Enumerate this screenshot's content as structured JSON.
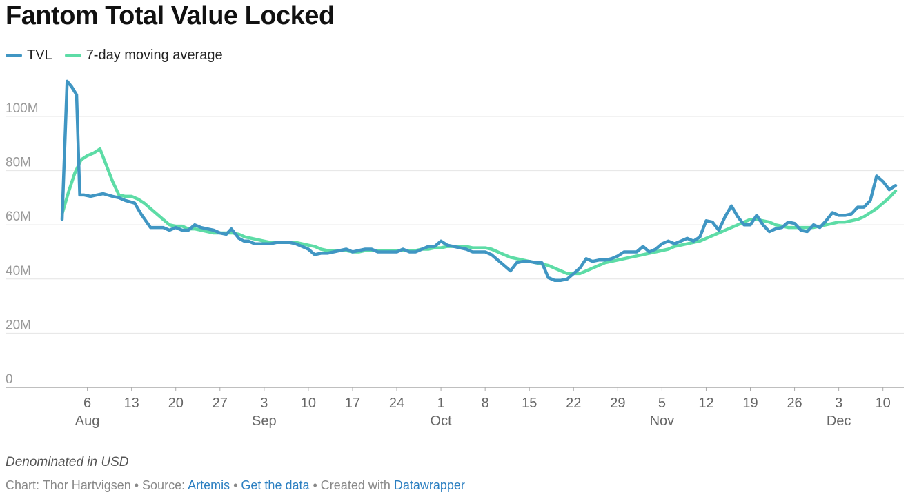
{
  "title": "Fantom Total Value Locked",
  "notes": "Denominated in USD",
  "footer": {
    "chart_prefix": "Chart: Thor Hartvigsen • Source: ",
    "source_link": "Artemis",
    "sep1": " • ",
    "data_link": "Get the data",
    "created_prefix": " • Created with ",
    "tool_link": "Datawrapper"
  },
  "colors": {
    "tvl": "#4096c3",
    "ma": "#5ddca6",
    "grid": "#e4e4e4",
    "axis": "#aaaaaa",
    "tick_text": "#666666"
  },
  "chart_data": {
    "type": "line",
    "x_axis": {
      "ticks": [
        {
          "day": 6,
          "label": "6",
          "month": "Aug"
        },
        {
          "day": 13,
          "label": "13",
          "month": ""
        },
        {
          "day": 20,
          "label": "20",
          "month": ""
        },
        {
          "day": 27,
          "label": "27",
          "month": ""
        },
        {
          "day": 34,
          "label": "3",
          "month": "Sep"
        },
        {
          "day": 41,
          "label": "10",
          "month": ""
        },
        {
          "day": 48,
          "label": "17",
          "month": ""
        },
        {
          "day": 55,
          "label": "24",
          "month": ""
        },
        {
          "day": 62,
          "label": "1",
          "month": "Oct"
        },
        {
          "day": 69,
          "label": "8",
          "month": ""
        },
        {
          "day": 76,
          "label": "15",
          "month": ""
        },
        {
          "day": 83,
          "label": "22",
          "month": ""
        },
        {
          "day": 90,
          "label": "29",
          "month": ""
        },
        {
          "day": 97,
          "label": "5",
          "month": "Nov"
        },
        {
          "day": 104,
          "label": "12",
          "month": ""
        },
        {
          "day": 111,
          "label": "19",
          "month": ""
        },
        {
          "day": 118,
          "label": "26",
          "month": ""
        },
        {
          "day": 125,
          "label": "3",
          "month": "Dec"
        },
        {
          "day": 132,
          "label": "10",
          "month": ""
        }
      ],
      "xlim": [
        2,
        134
      ]
    },
    "y_axis": {
      "ticks": [
        0,
        20,
        40,
        60,
        80,
        100
      ],
      "tick_labels": [
        "0",
        "20M",
        "40M",
        "60M",
        "80M",
        "100M"
      ],
      "ylim": [
        0,
        115
      ]
    },
    "grid": true,
    "legend_position": "top-left",
    "series": [
      {
        "name": "TVL",
        "color": "#4096c3",
        "points": [
          [
            2,
            62
          ],
          [
            2.8,
            113
          ],
          [
            3.5,
            111
          ],
          [
            4.3,
            108
          ],
          [
            4.8,
            71
          ],
          [
            5.5,
            71
          ],
          [
            6.5,
            70.5
          ],
          [
            7.5,
            71
          ],
          [
            8.5,
            71.5
          ],
          [
            10,
            70.5
          ],
          [
            11,
            70
          ],
          [
            12,
            69
          ],
          [
            13.5,
            68
          ],
          [
            14.5,
            64
          ],
          [
            16,
            59
          ],
          [
            17,
            59
          ],
          [
            18,
            59
          ],
          [
            19,
            58
          ],
          [
            20,
            59
          ],
          [
            21,
            58
          ],
          [
            22,
            58
          ],
          [
            23,
            60
          ],
          [
            24,
            59
          ],
          [
            25,
            58.5
          ],
          [
            26,
            58
          ],
          [
            27,
            57
          ],
          [
            28,
            56.5
          ],
          [
            28.8,
            58.5
          ],
          [
            30,
            55
          ],
          [
            30.8,
            54
          ],
          [
            31.5,
            54
          ],
          [
            32.5,
            53
          ],
          [
            34,
            53
          ],
          [
            35,
            53
          ],
          [
            36,
            53.5
          ],
          [
            37,
            53.5
          ],
          [
            38,
            53.5
          ],
          [
            39,
            53
          ],
          [
            40,
            52
          ],
          [
            41,
            51
          ],
          [
            42,
            49
          ],
          [
            43,
            49.5
          ],
          [
            44,
            49.5
          ],
          [
            45,
            50
          ],
          [
            46,
            50.5
          ],
          [
            47,
            51
          ],
          [
            48,
            50
          ],
          [
            49,
            50.5
          ],
          [
            50,
            51
          ],
          [
            51,
            51
          ],
          [
            52,
            50
          ],
          [
            53,
            50
          ],
          [
            54,
            50
          ],
          [
            55,
            50
          ],
          [
            56,
            51
          ],
          [
            57,
            50
          ],
          [
            58,
            50
          ],
          [
            59,
            51
          ],
          [
            60,
            52
          ],
          [
            61,
            52
          ],
          [
            62,
            54
          ],
          [
            63,
            52.5
          ],
          [
            64,
            52
          ],
          [
            65,
            51.5
          ],
          [
            66,
            51
          ],
          [
            67,
            50
          ],
          [
            68,
            50
          ],
          [
            69,
            50
          ],
          [
            70,
            49
          ],
          [
            71,
            47
          ],
          [
            72,
            45
          ],
          [
            73,
            43
          ],
          [
            74,
            46
          ],
          [
            75,
            46.5
          ],
          [
            76,
            46.5
          ],
          [
            77,
            46
          ],
          [
            78,
            46
          ],
          [
            79,
            40.5
          ],
          [
            80,
            39.5
          ],
          [
            81,
            39.5
          ],
          [
            82,
            40
          ],
          [
            83,
            42
          ],
          [
            84,
            44
          ],
          [
            85,
            47.5
          ],
          [
            86,
            46.5
          ],
          [
            87,
            47
          ],
          [
            88,
            47
          ],
          [
            89,
            47.5
          ],
          [
            90,
            48.5
          ],
          [
            91,
            50
          ],
          [
            92,
            50
          ],
          [
            93,
            50
          ],
          [
            94,
            52
          ],
          [
            95,
            50
          ],
          [
            96,
            51
          ],
          [
            97,
            53
          ],
          [
            98,
            54
          ],
          [
            99,
            53
          ],
          [
            100,
            54
          ],
          [
            101,
            55
          ],
          [
            102,
            54
          ],
          [
            103,
            55.5
          ],
          [
            104,
            61.5
          ],
          [
            105,
            61
          ],
          [
            106,
            58
          ],
          [
            107,
            63
          ],
          [
            108,
            67
          ],
          [
            109,
            63
          ],
          [
            110,
            60
          ],
          [
            111,
            60
          ],
          [
            112,
            63.5
          ],
          [
            113,
            60
          ],
          [
            114,
            57.5
          ],
          [
            115,
            58.5
          ],
          [
            116,
            59
          ],
          [
            117,
            61
          ],
          [
            118,
            60.5
          ],
          [
            119,
            58
          ],
          [
            120,
            57.5
          ],
          [
            121,
            60
          ],
          [
            122,
            59
          ],
          [
            123,
            61.5
          ],
          [
            124,
            64.5
          ],
          [
            125,
            63.5
          ],
          [
            126,
            63.5
          ],
          [
            127,
            64
          ],
          [
            128,
            66.5
          ],
          [
            129,
            66.5
          ],
          [
            130,
            69
          ],
          [
            131,
            78
          ],
          [
            132,
            76
          ],
          [
            133,
            73
          ],
          [
            134,
            74.5
          ]
        ]
      },
      {
        "name": "7-day moving average",
        "color": "#5ddca6",
        "points": [
          [
            2,
            64
          ],
          [
            3,
            72
          ],
          [
            4,
            79
          ],
          [
            5,
            84
          ],
          [
            6,
            85.5
          ],
          [
            7,
            86.5
          ],
          [
            8,
            88
          ],
          [
            9,
            82
          ],
          [
            10,
            76
          ],
          [
            11,
            71
          ],
          [
            12,
            70.5
          ],
          [
            13,
            70.5
          ],
          [
            14,
            69.5
          ],
          [
            15,
            68
          ],
          [
            16,
            66
          ],
          [
            17,
            64
          ],
          [
            18,
            62
          ],
          [
            19,
            60
          ],
          [
            20,
            59.5
          ],
          [
            21,
            59.5
          ],
          [
            22,
            58.5
          ],
          [
            23,
            58.5
          ],
          [
            24,
            58
          ],
          [
            25,
            57.5
          ],
          [
            26,
            57
          ],
          [
            27,
            57
          ],
          [
            28,
            57
          ],
          [
            29,
            57
          ],
          [
            30,
            56.5
          ],
          [
            31,
            55.5
          ],
          [
            32,
            55
          ],
          [
            33,
            54.5
          ],
          [
            34,
            54
          ],
          [
            35,
            53.5
          ],
          [
            36,
            53.5
          ],
          [
            37,
            53.5
          ],
          [
            38,
            53.5
          ],
          [
            39,
            53.5
          ],
          [
            40,
            53
          ],
          [
            41,
            52.5
          ],
          [
            42,
            52
          ],
          [
            43,
            51
          ],
          [
            44,
            50.5
          ],
          [
            45,
            50.5
          ],
          [
            46,
            50.5
          ],
          [
            47,
            50.5
          ],
          [
            48,
            50
          ],
          [
            49,
            50
          ],
          [
            50,
            50.5
          ],
          [
            51,
            50.5
          ],
          [
            52,
            50.5
          ],
          [
            53,
            50.5
          ],
          [
            54,
            50.5
          ],
          [
            55,
            50.5
          ],
          [
            56,
            50.5
          ],
          [
            57,
            50.5
          ],
          [
            58,
            50.5
          ],
          [
            59,
            51
          ],
          [
            60,
            51
          ],
          [
            61,
            51.5
          ],
          [
            62,
            51.5
          ],
          [
            63,
            52
          ],
          [
            64,
            52
          ],
          [
            65,
            52
          ],
          [
            66,
            52
          ],
          [
            67,
            51.5
          ],
          [
            68,
            51.5
          ],
          [
            69,
            51.5
          ],
          [
            70,
            51
          ],
          [
            71,
            50
          ],
          [
            72,
            49
          ],
          [
            73,
            48
          ],
          [
            74,
            47.5
          ],
          [
            75,
            47
          ],
          [
            76,
            46.5
          ],
          [
            77,
            46
          ],
          [
            78,
            45.5
          ],
          [
            79,
            45
          ],
          [
            80,
            44
          ],
          [
            81,
            43
          ],
          [
            82,
            42
          ],
          [
            83,
            42
          ],
          [
            84,
            42
          ],
          [
            85,
            43
          ],
          [
            86,
            44
          ],
          [
            87,
            45
          ],
          [
            88,
            46
          ],
          [
            89,
            46.5
          ],
          [
            90,
            47
          ],
          [
            91,
            47.5
          ],
          [
            92,
            48
          ],
          [
            93,
            48.5
          ],
          [
            94,
            49
          ],
          [
            95,
            49.5
          ],
          [
            96,
            50
          ],
          [
            97,
            50.5
          ],
          [
            98,
            51
          ],
          [
            99,
            52
          ],
          [
            100,
            52.5
          ],
          [
            101,
            53
          ],
          [
            102,
            53.5
          ],
          [
            103,
            54
          ],
          [
            104,
            55
          ],
          [
            105,
            56
          ],
          [
            106,
            57
          ],
          [
            107,
            58
          ],
          [
            108,
            59
          ],
          [
            109,
            60
          ],
          [
            110,
            61
          ],
          [
            111,
            62
          ],
          [
            112,
            62
          ],
          [
            113,
            61.5
          ],
          [
            114,
            61
          ],
          [
            115,
            60
          ],
          [
            116,
            59.5
          ],
          [
            117,
            59
          ],
          [
            118,
            59
          ],
          [
            119,
            59
          ],
          [
            120,
            59
          ],
          [
            121,
            59
          ],
          [
            122,
            59.5
          ],
          [
            123,
            60
          ],
          [
            124,
            60.5
          ],
          [
            125,
            61
          ],
          [
            126,
            61
          ],
          [
            127,
            61.5
          ],
          [
            128,
            62
          ],
          [
            129,
            63
          ],
          [
            130,
            64.5
          ],
          [
            131,
            66
          ],
          [
            132,
            68
          ],
          [
            133,
            70
          ],
          [
            134,
            72.5
          ]
        ]
      }
    ]
  }
}
